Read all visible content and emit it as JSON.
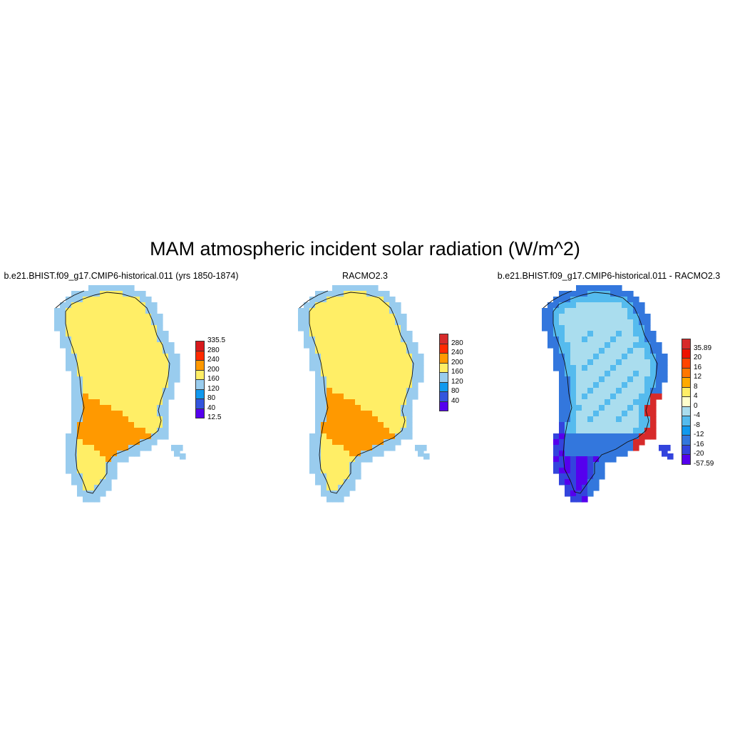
{
  "title": "MAM atmospheric incident solar radiation (W/m^2)",
  "panels": [
    {
      "title": "b.e21.BHIST.f09_g17.CMIP6-historical.011 (yrs 1850-1874)",
      "scheme": "model",
      "colorbar": {
        "labels": [
          "335.5",
          "280",
          "240",
          "200",
          "160",
          "120",
          "80",
          "40",
          "12.5"
        ],
        "colors": [
          "#d7191c",
          "#ff2a00",
          "#ff9900",
          "#ffee66",
          "#99ccee",
          "#1199ee",
          "#3355dd",
          "#5500ee"
        ]
      }
    },
    {
      "title": "RACMO2.3",
      "scheme": "racmo",
      "colorbar": {
        "labels": [
          "280",
          "240",
          "200",
          "160",
          "120",
          "80",
          "40"
        ],
        "colors": [
          "#d72a2a",
          "#ff2a00",
          "#ff9900",
          "#ffee66",
          "#99ccee",
          "#1199ee",
          "#3355dd",
          "#5500ee"
        ]
      }
    },
    {
      "title": "b.e21.BHIST.f09_g17.CMIP6-historical.011 - RACMO2.3",
      "scheme": "diff",
      "colorbar": {
        "labels": [
          "35.89",
          "20",
          "16",
          "12",
          "8",
          "4",
          "0",
          "-4",
          "-8",
          "-12",
          "-16",
          "-20",
          "-57.59"
        ],
        "colors": [
          "#d72a2a",
          "#ee1100",
          "#ff4400",
          "#ff7700",
          "#ffaa00",
          "#ffee66",
          "#ffffcc",
          "#aaddee",
          "#55bbee",
          "#1199ee",
          "#3377dd",
          "#3344dd",
          "#5500ee"
        ]
      }
    }
  ]
}
